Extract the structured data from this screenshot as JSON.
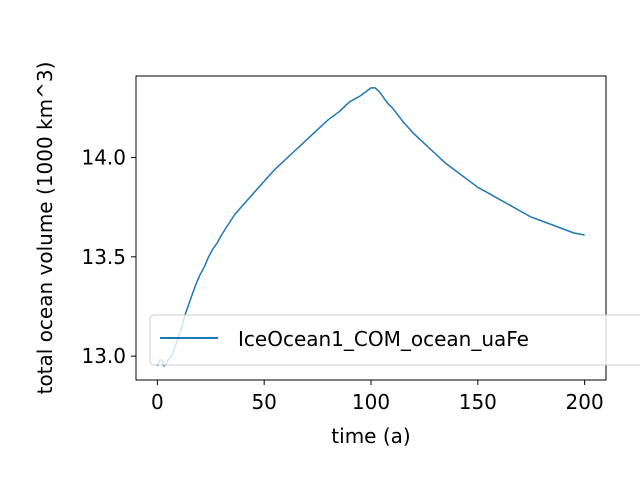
{
  "chart_data": {
    "type": "line",
    "title": "",
    "xlabel": "time (a)",
    "ylabel": "total ocean volume (1000 km^3)",
    "xlim": [
      -10,
      210
    ],
    "ylim": [
      12.88,
      14.41
    ],
    "xticks": [
      0,
      50,
      100,
      150,
      200
    ],
    "xtick_labels": [
      "0",
      "50",
      "100",
      "150",
      "200"
    ],
    "yticks": [
      13.0,
      13.5,
      14.0
    ],
    "ytick_labels": [
      "13.0",
      "13.5",
      "14.0"
    ],
    "grid": false,
    "legend": {
      "placement": "lower-right"
    },
    "series": [
      {
        "name": "IceOcean1_COM_ocean_uaFe",
        "color": "#1f77b4",
        "x": [
          0,
          1,
          2,
          3,
          4,
          5,
          6,
          7,
          8,
          9,
          10,
          11,
          12,
          13,
          14,
          15,
          16,
          18,
          20,
          22,
          24,
          26,
          28,
          30,
          33,
          36,
          40,
          45,
          50,
          55,
          60,
          65,
          70,
          75,
          80,
          85,
          90,
          95,
          100,
          102,
          104,
          106,
          108,
          110,
          115,
          120,
          125,
          130,
          135,
          140,
          145,
          150,
          155,
          160,
          165,
          170,
          175,
          180,
          185,
          190,
          195,
          200
        ],
        "values": [
          12.95,
          12.98,
          12.98,
          12.95,
          12.96,
          12.98,
          12.99,
          13.01,
          13.04,
          13.07,
          13.1,
          13.13,
          13.17,
          13.21,
          13.24,
          13.27,
          13.3,
          13.36,
          13.41,
          13.45,
          13.5,
          13.54,
          13.57,
          13.61,
          13.66,
          13.71,
          13.76,
          13.82,
          13.88,
          13.94,
          13.99,
          14.04,
          14.09,
          14.14,
          14.19,
          14.23,
          14.28,
          14.31,
          14.35,
          14.35,
          14.33,
          14.3,
          14.27,
          14.25,
          14.18,
          14.12,
          14.07,
          14.02,
          13.97,
          13.93,
          13.89,
          13.85,
          13.82,
          13.79,
          13.76,
          13.73,
          13.7,
          13.68,
          13.66,
          13.64,
          13.62,
          13.61
        ]
      }
    ]
  }
}
